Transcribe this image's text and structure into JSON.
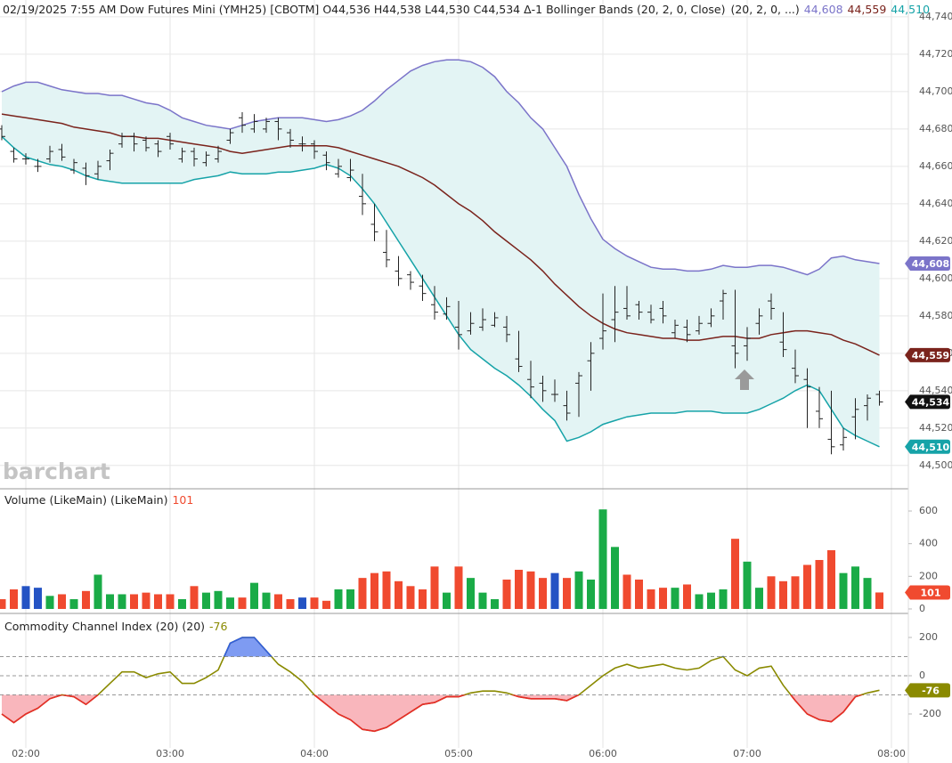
{
  "chart_data": [
    {
      "type": "ohlc",
      "title": "02/19/2025 7:55 AM Dow Futures Mini (YMH25) [CBOTM]",
      "ohlc_text": "O44,536 H44,538 L44,530 C44,534 Δ-1",
      "study": "Bollinger Bands (20, 2, 0, Close)",
      "study_params": "(20, 2, 0, ...)",
      "watermark": "barchart",
      "last_label": "44,534",
      "color": "#222222",
      "band_fill": "#e3f4f4",
      "grid": true,
      "ylim": [
        44488,
        44749
      ],
      "yticks": [
        {
          "value": 44500,
          "label": "44,500"
        },
        {
          "value": 44520,
          "label": "44,520"
        },
        {
          "value": 44540,
          "label": "44,540"
        },
        {
          "value": 44560,
          "label": "44,560"
        },
        {
          "value": 44580,
          "label": "44,580"
        },
        {
          "value": 44600,
          "label": "44,600"
        },
        {
          "value": 44620,
          "label": "44,620"
        },
        {
          "value": 44640,
          "label": "44,640"
        },
        {
          "value": 44660,
          "label": "44,660"
        },
        {
          "value": 44680,
          "label": "44,680"
        },
        {
          "value": 44700,
          "label": "44,700"
        },
        {
          "value": 44720,
          "label": "44,720"
        },
        {
          "value": 44740,
          "label": "44,740"
        }
      ],
      "x": [
        "01:50",
        "01:55",
        "02:00",
        "02:05",
        "02:10",
        "02:15",
        "02:20",
        "02:25",
        "02:30",
        "02:35",
        "02:40",
        "02:45",
        "02:50",
        "02:55",
        "03:00",
        "03:05",
        "03:10",
        "03:15",
        "03:20",
        "03:25",
        "03:30",
        "03:35",
        "03:40",
        "03:45",
        "03:50",
        "03:55",
        "04:00",
        "04:05",
        "04:10",
        "04:15",
        "04:20",
        "04:25",
        "04:30",
        "04:35",
        "04:40",
        "04:45",
        "04:50",
        "04:55",
        "05:00",
        "05:05",
        "05:10",
        "05:15",
        "05:20",
        "05:25",
        "05:30",
        "05:35",
        "05:40",
        "05:45",
        "05:50",
        "05:55",
        "06:00",
        "06:05",
        "06:10",
        "06:15",
        "06:20",
        "06:25",
        "06:30",
        "06:35",
        "06:40",
        "06:45",
        "06:50",
        "06:55",
        "07:00",
        "07:05",
        "07:10",
        "07:15",
        "07:20",
        "07:25",
        "07:30",
        "07:35",
        "07:40",
        "07:45",
        "07:50",
        "07:55"
      ],
      "open": [
        44680,
        44668,
        44664,
        44660,
        44664,
        44669,
        44658,
        44659,
        44656,
        44663,
        44672,
        44676,
        44674,
        44672,
        44676,
        44664,
        44668,
        44662,
        44664,
        44674,
        44686,
        44680,
        44680,
        44684,
        44678,
        44672,
        44672,
        44666,
        44656,
        44654,
        44644,
        44629,
        44614,
        44604,
        44602,
        44596,
        44586,
        44581,
        44574,
        44572,
        44574,
        44575,
        44574,
        44557,
        44546,
        44544,
        44538,
        44532,
        44544,
        44556,
        44568,
        44578,
        44584,
        44586,
        44582,
        44584,
        44571,
        44574,
        44572,
        44576,
        44588,
        44564,
        44564,
        44576,
        44588,
        44566,
        44552,
        44546,
        44529,
        44514,
        44511,
        44526,
        44532,
        44538
      ],
      "high": [
        44682,
        44670,
        44667,
        44664,
        44671,
        44672,
        44664,
        44662,
        44663,
        44669,
        44678,
        44678,
        44676,
        44674,
        44678,
        44670,
        44670,
        44668,
        44671,
        44680,
        44689,
        44688,
        44686,
        44686,
        44680,
        44676,
        44674,
        44668,
        44664,
        44664,
        44656,
        44640,
        44626,
        44612,
        44604,
        44602,
        44596,
        44590,
        44588,
        44582,
        44584,
        44582,
        44580,
        44572,
        44556,
        44548,
        44546,
        44540,
        44550,
        44566,
        44592,
        44596,
        44596,
        44588,
        44586,
        44588,
        44578,
        44578,
        44580,
        44584,
        44594,
        44594,
        44574,
        44584,
        44592,
        44582,
        44562,
        44552,
        44542,
        44540,
        44520,
        44536,
        44538,
        44540
      ],
      "low": [
        44674,
        44662,
        44661,
        44657,
        44662,
        44663,
        44656,
        44650,
        44653,
        44658,
        44670,
        44668,
        44668,
        44665,
        44669,
        44662,
        44660,
        44660,
        44662,
        44672,
        44678,
        44678,
        44678,
        44674,
        44670,
        44668,
        44664,
        44658,
        44654,
        44652,
        44634,
        44620,
        44606,
        44596,
        44594,
        44588,
        44578,
        44578,
        44562,
        44570,
        44572,
        44574,
        44566,
        44550,
        44536,
        44534,
        44534,
        44524,
        44526,
        44540,
        44562,
        44566,
        44578,
        44578,
        44576,
        44576,
        44568,
        44566,
        44570,
        44574,
        44578,
        44552,
        44556,
        44570,
        44578,
        44558,
        44544,
        44520,
        44520,
        44506,
        44508,
        44514,
        44524,
        44532
      ],
      "close": [
        44676,
        44664,
        44664,
        44660,
        44668,
        44665,
        44662,
        44655,
        44660,
        44667,
        44676,
        44672,
        44670,
        44668,
        44672,
        44668,
        44664,
        44666,
        44668,
        44678,
        44682,
        44684,
        44684,
        44680,
        44674,
        44672,
        44668,
        44662,
        44660,
        44658,
        44640,
        44625,
        44610,
        44600,
        44598,
        44592,
        44582,
        44585,
        44570,
        44576,
        44578,
        44579,
        44570,
        44553,
        44542,
        44540,
        44538,
        44528,
        44548,
        44560,
        44572,
        44582,
        44580,
        44582,
        44578,
        44580,
        44575,
        44570,
        44576,
        44580,
        44592,
        44560,
        44568,
        44580,
        44584,
        44562,
        44548,
        44542,
        44525,
        44510,
        44515,
        44530,
        44536,
        44534
      ],
      "bands": [
        {
          "color": "#7b74c9",
          "last_label": "44,608",
          "values": [
            44700,
            44703,
            44705,
            44705,
            44703,
            44701,
            44700,
            44699,
            44699,
            44698,
            44698,
            44696,
            44694,
            44693,
            44690,
            44686,
            44684,
            44682,
            44681,
            44680,
            44682,
            44684,
            44685,
            44686,
            44686,
            44686,
            44685,
            44684,
            44685,
            44687,
            44690,
            44695,
            44701,
            44706,
            44711,
            44714,
            44716,
            44717,
            44717,
            44716,
            44713,
            44708,
            44700,
            44694,
            44686,
            44680,
            44670,
            44660,
            44645,
            44632,
            44621,
            44616,
            44612,
            44609,
            44606,
            44605,
            44605,
            44604,
            44604,
            44605,
            44607,
            44606,
            44606,
            44607,
            44607,
            44606,
            44604,
            44602,
            44605,
            44611,
            44612,
            44610,
            44609,
            44608
          ]
        },
        {
          "color": "#7a231c",
          "last_label": "44,559",
          "values": [
            44688,
            44687,
            44686,
            44685,
            44684,
            44683,
            44681,
            44680,
            44679,
            44678,
            44676,
            44676,
            44675,
            44675,
            44674,
            44673,
            44672,
            44671,
            44670,
            44668,
            44667,
            44668,
            44669,
            44670,
            44671,
            44671,
            44671,
            44671,
            44670,
            44668,
            44666,
            44664,
            44662,
            44660,
            44657,
            44654,
            44650,
            44645,
            44640,
            44636,
            44631,
            44625,
            44620,
            44615,
            44610,
            44604,
            44597,
            44591,
            44585,
            44580,
            44576,
            44573,
            44571,
            44570,
            44569,
            44568,
            44568,
            44567,
            44567,
            44568,
            44569,
            44569,
            44568,
            44568,
            44570,
            44571,
            44572,
            44572,
            44571,
            44570,
            44567,
            44565,
            44562,
            44559
          ]
        },
        {
          "color": "#16a3a8",
          "last_label": "44,510",
          "values": [
            44676,
            44670,
            44665,
            44663,
            44661,
            44660,
            44658,
            44655,
            44653,
            44652,
            44651,
            44651,
            44651,
            44651,
            44651,
            44651,
            44653,
            44654,
            44655,
            44657,
            44656,
            44656,
            44656,
            44657,
            44657,
            44658,
            44659,
            44661,
            44659,
            44655,
            44648,
            44640,
            44630,
            44620,
            44610,
            44600,
            44590,
            44580,
            44570,
            44562,
            44557,
            44552,
            44548,
            44543,
            44537,
            44530,
            44524,
            44513,
            44515,
            44518,
            44522,
            44524,
            44526,
            44527,
            44528,
            44528,
            44528,
            44529,
            44529,
            44529,
            44528,
            44528,
            44528,
            44530,
            44533,
            44536,
            44540,
            44543,
            44540,
            44530,
            44520,
            44516,
            44513,
            44510
          ]
        }
      ]
    },
    {
      "type": "bar",
      "title": "Volume (LikeMain)  (LikeMain)",
      "up_color": "#1aab47",
      "down_color": "#f04a2f",
      "flat_color": "#2453c4",
      "ylim": [
        -22,
        731
      ],
      "yticks": [
        0,
        200,
        400,
        600
      ],
      "values": [
        60,
        120,
        140,
        130,
        80,
        90,
        60,
        110,
        210,
        90,
        90,
        90,
        100,
        90,
        90,
        60,
        140,
        100,
        110,
        70,
        70,
        160,
        100,
        90,
        60,
        70,
        70,
        50,
        120,
        120,
        190,
        220,
        230,
        170,
        140,
        120,
        260,
        100,
        260,
        190,
        100,
        60,
        180,
        240,
        230,
        190,
        220,
        190,
        230,
        180,
        610,
        380,
        210,
        180,
        120,
        130,
        130,
        150,
        90,
        100,
        120,
        430,
        290,
        130,
        200,
        170,
        200,
        270,
        300,
        360,
        220,
        260,
        190,
        101
      ]
    },
    {
      "type": "line",
      "title": "Commodity Channel Index (20)  (20)",
      "color": "#8a8a00",
      "high_color": "#2f5de0",
      "low_color": "#e82a2a",
      "high_fill": "#7e9bf2",
      "low_fill": "#f9b6bc",
      "levels": [
        100,
        0,
        -100
      ],
      "ylim": [
        -377,
        321
      ],
      "yticks": [
        200,
        0,
        -200
      ],
      "xticks": [
        "02:00",
        "03:00",
        "04:00",
        "05:00",
        "06:00",
        "07:00",
        "08:00"
      ],
      "values": [
        -200,
        -245,
        -200,
        -170,
        -120,
        -100,
        -110,
        -150,
        -100,
        -40,
        20,
        20,
        -10,
        10,
        20,
        -40,
        -40,
        -10,
        30,
        170,
        200,
        200,
        130,
        60,
        20,
        -30,
        -100,
        -150,
        -200,
        -230,
        -280,
        -290,
        -270,
        -230,
        -190,
        -150,
        -140,
        -110,
        -110,
        -90,
        -80,
        -80,
        -90,
        -110,
        -120,
        -120,
        -120,
        -130,
        -100,
        -50,
        0,
        40,
        60,
        40,
        50,
        60,
        40,
        30,
        40,
        80,
        100,
        30,
        0,
        40,
        50,
        -50,
        -130,
        -200,
        -230,
        -240,
        -190,
        -110,
        -90,
        -76
      ]
    }
  ]
}
